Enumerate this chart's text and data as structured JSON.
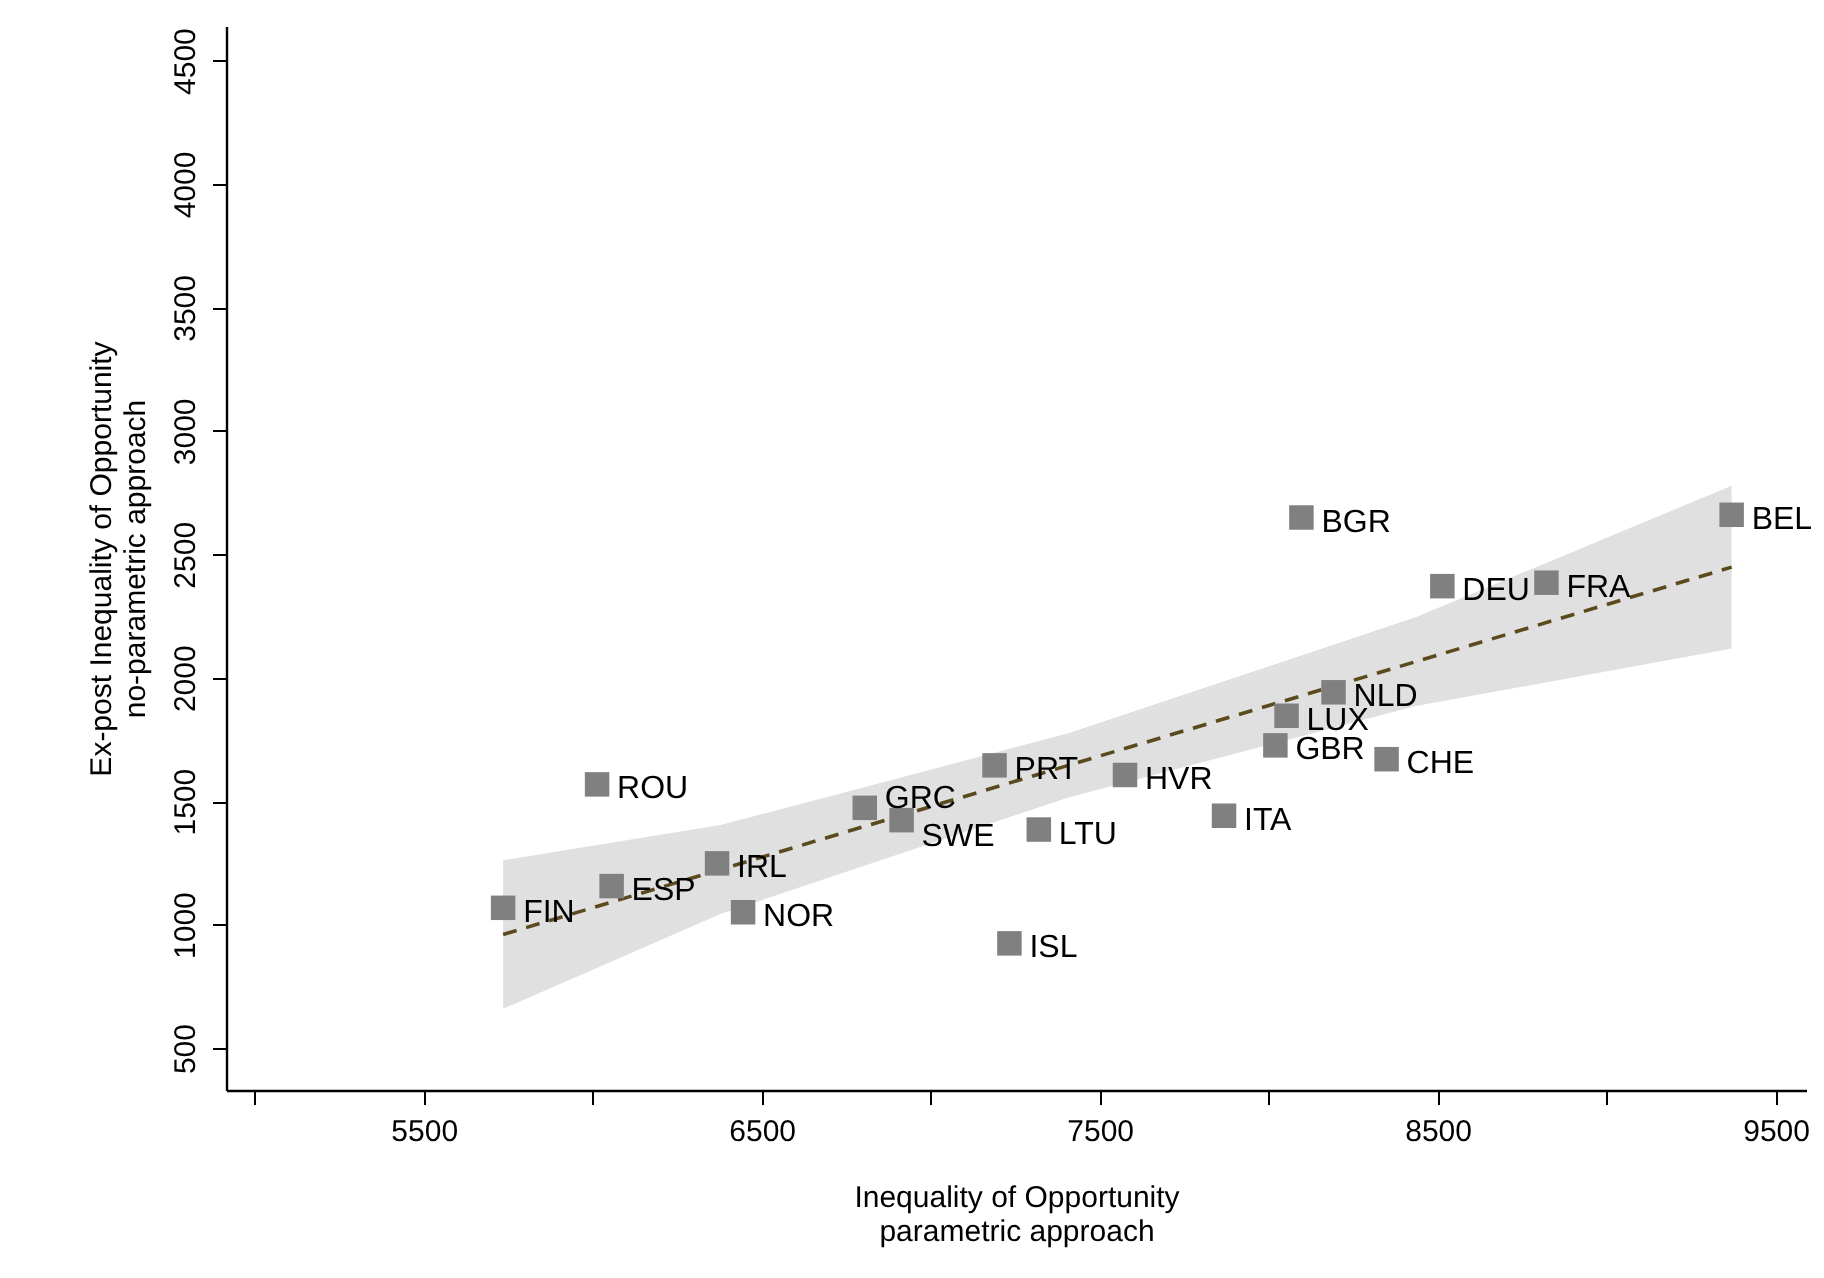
{
  "chart_data": {
    "type": "scatter",
    "xlabel": "Inequality of Opportunity\nparametric approach",
    "ylabel": "Ex-post Inequality of Opportunity\nno-parametric approach",
    "xlim": [
      4915,
      9590
    ],
    "xticks": [
      {
        "value": 5000,
        "label": null
      },
      5500,
      {
        "value": 6000,
        "label": null
      },
      6500,
      {
        "value": 7000,
        "label": null
      },
      7500,
      {
        "value": 8000,
        "label": null
      },
      8500,
      {
        "value": 9000,
        "label": null
      },
      9500
    ],
    "ylim": [
      330,
      4640
    ],
    "yticks": [
      500,
      1000,
      1500,
      2000,
      2500,
      3000,
      3500,
      4000,
      4500
    ],
    "grid": false,
    "series": [
      {
        "type": "line",
        "color": "#5a4a1e",
        "line_style": "dashed",
        "marker": "none",
        "x": [
          5735,
          6378,
          7405,
          8435,
          9370
        ],
        "values": [
          960,
          1223,
          1644,
          2065,
          2448
        ],
        "lower": [
          659,
          1043,
          1514,
          1885,
          2118
        ],
        "upper": [
          1261,
          1403,
          1774,
          2245,
          2778
        ]
      },
      {
        "color": "#808080",
        "marker": "square",
        "x": [
          5735,
          6056,
          6368,
          6445,
          6013,
          6805,
          6914,
          7189,
          7233,
          7320,
          7575,
          7868,
          8020,
          8053,
          8192,
          8349,
          8097,
          8514,
          8822,
          9370
        ],
        "values": [
          1068,
          1156,
          1248,
          1050,
          1568,
          1473,
          1423,
          1645,
          924,
          1385,
          1606,
          1441,
          1726,
          1846,
          1941,
          1670,
          2649,
          2371,
          2385,
          2660
        ]
      }
    ],
    "annotations": [
      {
        "text": "FIN",
        "x": 5735,
        "y": 1068
      },
      {
        "text": "ESP",
        "x": 6056,
        "y": 1156
      },
      {
        "text": "IRL",
        "x": 6368,
        "y": 1248
      },
      {
        "text": "NOR",
        "x": 6445,
        "y": 1050
      },
      {
        "text": "ROU",
        "x": 6013,
        "y": 1568
      },
      {
        "text": "GRC",
        "x": 6805,
        "y": 1473
      },
      {
        "text": "SWE",
        "x": 6914,
        "y": 1423
      },
      {
        "text": "PRT",
        "x": 7189,
        "y": 1645
      },
      {
        "text": "ISL",
        "x": 7233,
        "y": 924
      },
      {
        "text": "LTU",
        "x": 7320,
        "y": 1385
      },
      {
        "text": "HVR",
        "x": 7575,
        "y": 1606
      },
      {
        "text": "ITA",
        "x": 7868,
        "y": 1441
      },
      {
        "text": "GBR",
        "x": 8020,
        "y": 1726
      },
      {
        "text": "LUX",
        "x": 8053,
        "y": 1846
      },
      {
        "text": "NLD",
        "x": 8192,
        "y": 1941
      },
      {
        "text": "CHE",
        "x": 8349,
        "y": 1670
      },
      {
        "text": "BGR",
        "x": 8097,
        "y": 2649
      },
      {
        "text": "DEU",
        "x": 8514,
        "y": 2371
      },
      {
        "text": "FRA",
        "x": 8822,
        "y": 2385
      },
      {
        "text": "BEL",
        "x": 9370,
        "y": 2660
      }
    ]
  }
}
